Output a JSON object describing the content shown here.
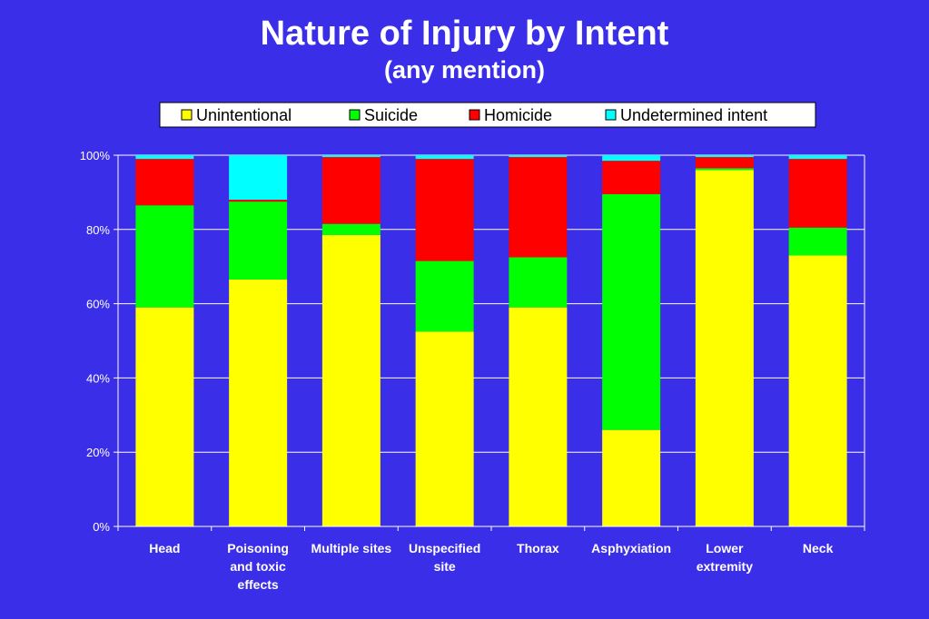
{
  "chart_data": {
    "type": "bar",
    "stacked": true,
    "title": "Nature of Injury by Intent",
    "subtitle": "(any mention)",
    "categories": [
      [
        "Head"
      ],
      [
        "Poisoning",
        "and toxic",
        "effects"
      ],
      [
        "Multiple sites"
      ],
      [
        "Unspecified",
        "site"
      ],
      [
        "Thorax"
      ],
      [
        "Asphyxiation"
      ],
      [
        "Lower",
        "extremity"
      ],
      [
        "Neck"
      ]
    ],
    "series": [
      {
        "name": "Unintentional",
        "color": "#ffff00",
        "values": [
          59,
          66.5,
          78.5,
          52.5,
          59,
          26,
          96,
          73
        ]
      },
      {
        "name": "Suicide",
        "color": "#00ff00",
        "values": [
          27.5,
          21,
          3,
          19,
          13.5,
          63.5,
          0.5,
          7.5
        ]
      },
      {
        "name": "Homicide",
        "color": "#ff0000",
        "values": [
          12.5,
          0.5,
          18,
          27.5,
          27,
          9,
          3,
          18.5
        ]
      },
      {
        "name": "Undetermined intent",
        "color": "#00ffff",
        "values": [
          1,
          12,
          0.5,
          1,
          0.5,
          1.5,
          0.5,
          1
        ]
      }
    ],
    "ylim": [
      0,
      100
    ],
    "yticks": [
      "0%",
      "20%",
      "40%",
      "60%",
      "80%",
      "100%"
    ],
    "grid": true,
    "legend_position": "top",
    "plot_background": "#3a2ee8"
  }
}
